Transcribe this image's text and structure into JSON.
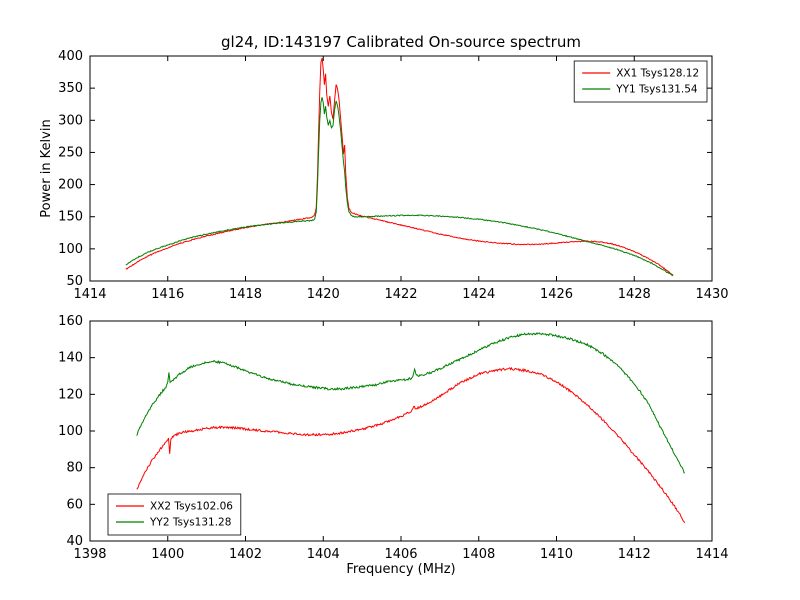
{
  "figure": {
    "title": "gl24, ID:143197 Calibrated On-source spectrum",
    "background": "#ffffff",
    "accent_colors": {
      "xx": "#ff0000",
      "yy": "#008000"
    }
  },
  "chart_data": [
    {
      "type": "line",
      "title": "gl24, ID:143197 Calibrated On-source spectrum",
      "xlabel": "",
      "ylabel": "Power in Kelvin",
      "xlim": [
        1414,
        1430
      ],
      "ylim": [
        50,
        400
      ],
      "xticks": [
        1414,
        1416,
        1418,
        1420,
        1422,
        1424,
        1426,
        1428,
        1430
      ],
      "yticks": [
        50,
        100,
        150,
        200,
        250,
        300,
        350,
        400
      ],
      "grid": false,
      "legend": "top-right",
      "series": [
        {
          "name": "XX1 Tsys128.12",
          "color": "#ff0000",
          "noise": 1.5,
          "points": [
            [
              1414.92,
              68
            ],
            [
              1415.2,
              79
            ],
            [
              1415.5,
              89
            ],
            [
              1415.8,
              97
            ],
            [
              1416.1,
              104
            ],
            [
              1416.5,
              112
            ],
            [
              1417.0,
              120
            ],
            [
              1417.5,
              127
            ],
            [
              1418.0,
              133
            ],
            [
              1418.5,
              138
            ],
            [
              1419.0,
              142
            ],
            [
              1419.4,
              146
            ],
            [
              1419.7,
              149
            ],
            [
              1419.78,
              153
            ],
            [
              1419.82,
              165
            ],
            [
              1419.85,
              210
            ],
            [
              1419.88,
              280
            ],
            [
              1419.91,
              345
            ],
            [
              1419.94,
              390
            ],
            [
              1419.97,
              396
            ],
            [
              1420.0,
              380
            ],
            [
              1420.03,
              355
            ],
            [
              1420.06,
              372
            ],
            [
              1420.09,
              340
            ],
            [
              1420.13,
              322
            ],
            [
              1420.17,
              338
            ],
            [
              1420.21,
              312
            ],
            [
              1420.25,
              302
            ],
            [
              1420.29,
              330
            ],
            [
              1420.33,
              356
            ],
            [
              1420.37,
              348
            ],
            [
              1420.41,
              330
            ],
            [
              1420.45,
              300
            ],
            [
              1420.49,
              272
            ],
            [
              1420.52,
              248
            ],
            [
              1420.55,
              262
            ],
            [
              1420.58,
              215
            ],
            [
              1420.62,
              180
            ],
            [
              1420.66,
              163
            ],
            [
              1420.72,
              157
            ],
            [
              1420.8,
              155
            ],
            [
              1421.0,
              151
            ],
            [
              1421.5,
              144
            ],
            [
              1422.0,
              137
            ],
            [
              1422.5,
              130
            ],
            [
              1423.0,
              123
            ],
            [
              1423.5,
              117
            ],
            [
              1424.0,
              112
            ],
            [
              1424.5,
              109
            ],
            [
              1425.0,
              107
            ],
            [
              1425.5,
              107
            ],
            [
              1426.0,
              109
            ],
            [
              1426.4,
              111
            ],
            [
              1426.8,
              112
            ],
            [
              1427.1,
              111
            ],
            [
              1427.4,
              108
            ],
            [
              1427.7,
              103
            ],
            [
              1428.0,
              96
            ],
            [
              1428.3,
              87
            ],
            [
              1428.6,
              77
            ],
            [
              1428.85,
              66
            ],
            [
              1429.0,
              59
            ]
          ]
        },
        {
          "name": "YY1 Tsys131.54",
          "color": "#008000",
          "noise": 1.5,
          "points": [
            [
              1414.92,
              75
            ],
            [
              1415.2,
              86
            ],
            [
              1415.5,
              95
            ],
            [
              1415.8,
              102
            ],
            [
              1416.1,
              108
            ],
            [
              1416.5,
              116
            ],
            [
              1417.0,
              123
            ],
            [
              1417.5,
              129
            ],
            [
              1418.0,
              134
            ],
            [
              1418.5,
              138
            ],
            [
              1419.0,
              141
            ],
            [
              1419.4,
              143
            ],
            [
              1419.7,
              144
            ],
            [
              1419.78,
              146
            ],
            [
              1419.82,
              158
            ],
            [
              1419.85,
              195
            ],
            [
              1419.88,
              250
            ],
            [
              1419.91,
              300
            ],
            [
              1419.94,
              328
            ],
            [
              1419.97,
              336
            ],
            [
              1420.0,
              328
            ],
            [
              1420.03,
              310
            ],
            [
              1420.06,
              322
            ],
            [
              1420.09,
              305
            ],
            [
              1420.13,
              292
            ],
            [
              1420.17,
              300
            ],
            [
              1420.21,
              288
            ],
            [
              1420.25,
              292
            ],
            [
              1420.29,
              315
            ],
            [
              1420.33,
              330
            ],
            [
              1420.37,
              322
            ],
            [
              1420.41,
              305
            ],
            [
              1420.45,
              282
            ],
            [
              1420.49,
              255
            ],
            [
              1420.52,
              235
            ],
            [
              1420.55,
              220
            ],
            [
              1420.58,
              195
            ],
            [
              1420.62,
              172
            ],
            [
              1420.66,
              158
            ],
            [
              1420.72,
              152
            ],
            [
              1420.8,
              150
            ],
            [
              1421.0,
              150
            ],
            [
              1421.5,
              151
            ],
            [
              1422.0,
              152
            ],
            [
              1422.5,
              152
            ],
            [
              1423.0,
              151
            ],
            [
              1423.5,
              149
            ],
            [
              1424.0,
              146
            ],
            [
              1424.5,
              142
            ],
            [
              1425.0,
              137
            ],
            [
              1425.5,
              131
            ],
            [
              1426.0,
              124
            ],
            [
              1426.5,
              116
            ],
            [
              1427.0,
              108
            ],
            [
              1427.5,
              100
            ],
            [
              1428.0,
              90
            ],
            [
              1428.4,
              79
            ],
            [
              1428.7,
              69
            ],
            [
              1429.0,
              58
            ]
          ]
        }
      ]
    },
    {
      "type": "line",
      "title": "",
      "xlabel": "Frequency (MHz)",
      "ylabel": "",
      "xlim": [
        1398,
        1414
      ],
      "ylim": [
        40,
        160
      ],
      "xticks": [
        1398,
        1400,
        1402,
        1404,
        1406,
        1408,
        1410,
        1412,
        1414
      ],
      "yticks": [
        40,
        60,
        80,
        100,
        120,
        140,
        160
      ],
      "grid": false,
      "legend": "bottom-left",
      "series": [
        {
          "name": "XX2 Tsys102.06",
          "color": "#ff0000",
          "noise": 1.2,
          "points": [
            [
              1399.2,
              68
            ],
            [
              1399.4,
              77
            ],
            [
              1399.6,
              84
            ],
            [
              1399.8,
              90
            ],
            [
              1399.95,
              94
            ],
            [
              1400.02,
              96
            ],
            [
              1400.05,
              87
            ],
            [
              1400.08,
              96
            ],
            [
              1400.3,
              99
            ],
            [
              1400.6,
              100
            ],
            [
              1400.9,
              101
            ],
            [
              1401.2,
              102
            ],
            [
              1401.6,
              102
            ],
            [
              1402.0,
              101
            ],
            [
              1402.5,
              100
            ],
            [
              1403.0,
              99
            ],
            [
              1403.5,
              98
            ],
            [
              1404.0,
              98
            ],
            [
              1404.5,
              99
            ],
            [
              1405.0,
              101
            ],
            [
              1405.5,
              104
            ],
            [
              1406.0,
              108
            ],
            [
              1406.28,
              111
            ],
            [
              1406.33,
              114
            ],
            [
              1406.38,
              112
            ],
            [
              1406.7,
              115
            ],
            [
              1407.0,
              119
            ],
            [
              1407.5,
              126
            ],
            [
              1408.0,
              131
            ],
            [
              1408.4,
              133
            ],
            [
              1408.8,
              134
            ],
            [
              1409.2,
              133
            ],
            [
              1409.6,
              131
            ],
            [
              1410.0,
              127
            ],
            [
              1410.4,
              121
            ],
            [
              1410.8,
              114
            ],
            [
              1411.2,
              106
            ],
            [
              1411.6,
              97
            ],
            [
              1412.0,
              87
            ],
            [
              1412.4,
              77
            ],
            [
              1412.8,
              66
            ],
            [
              1413.1,
              57
            ],
            [
              1413.3,
              50
            ]
          ]
        },
        {
          "name": "YY2 Tsys131.28",
          "color": "#008000",
          "noise": 1.2,
          "points": [
            [
              1399.2,
              98
            ],
            [
              1399.4,
              107
            ],
            [
              1399.6,
              114
            ],
            [
              1399.8,
              120
            ],
            [
              1399.95,
              124
            ],
            [
              1400.0,
              127
            ],
            [
              1400.03,
              132
            ],
            [
              1400.06,
              126
            ],
            [
              1400.3,
              131
            ],
            [
              1400.6,
              135
            ],
            [
              1400.9,
              137
            ],
            [
              1401.15,
              138
            ],
            [
              1401.45,
              137
            ],
            [
              1401.75,
              135
            ],
            [
              1402.1,
              132
            ],
            [
              1402.5,
              129
            ],
            [
              1402.9,
              127
            ],
            [
              1403.3,
              125
            ],
            [
              1403.7,
              124
            ],
            [
              1404.1,
              123
            ],
            [
              1404.5,
              123
            ],
            [
              1404.9,
              124
            ],
            [
              1405.3,
              125
            ],
            [
              1405.7,
              127
            ],
            [
              1406.1,
              128
            ],
            [
              1406.3,
              129
            ],
            [
              1406.35,
              134
            ],
            [
              1406.4,
              130
            ],
            [
              1406.8,
              132
            ],
            [
              1407.2,
              136
            ],
            [
              1407.6,
              140
            ],
            [
              1408.0,
              144
            ],
            [
              1408.4,
              148
            ],
            [
              1408.8,
              151
            ],
            [
              1409.2,
              153
            ],
            [
              1409.6,
              153
            ],
            [
              1410.0,
              152
            ],
            [
              1410.4,
              150
            ],
            [
              1410.8,
              147
            ],
            [
              1411.2,
              142
            ],
            [
              1411.6,
              135
            ],
            [
              1412.0,
              126
            ],
            [
              1412.4,
              114
            ],
            [
              1412.7,
              101
            ],
            [
              1413.0,
              89
            ],
            [
              1413.3,
              77
            ]
          ]
        }
      ]
    }
  ]
}
